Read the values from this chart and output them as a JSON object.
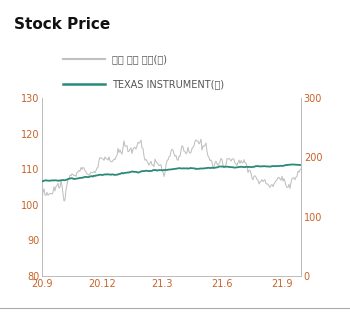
{
  "title": "Stock Price",
  "title_bg_color": "#e0e0e0",
  "legend_gray_label": "소속 지수 대비(좌)",
  "legend_teal_label": "TEXAS INSTRUMENT(우)",
  "left_ylim": [
    80,
    130
  ],
  "right_ylim": [
    0,
    300
  ],
  "left_yticks": [
    80,
    90,
    100,
    110,
    120,
    130
  ],
  "right_yticks": [
    0,
    100,
    200,
    300
  ],
  "xtick_labels": [
    "20.9",
    "20.12",
    "21.3",
    "21.6",
    "21.9"
  ],
  "gray_color": "#c0c0c0",
  "teal_color": "#2a8a7a",
  "background_color": "#ffffff",
  "tick_color": "#c8622a",
  "spine_color": "#bbbbbb",
  "fig_bg_color": "#ffffff",
  "bottom_line_color": "#aaaaaa",
  "title_fontsize": 11,
  "tick_fontsize": 7,
  "legend_fontsize": 7
}
